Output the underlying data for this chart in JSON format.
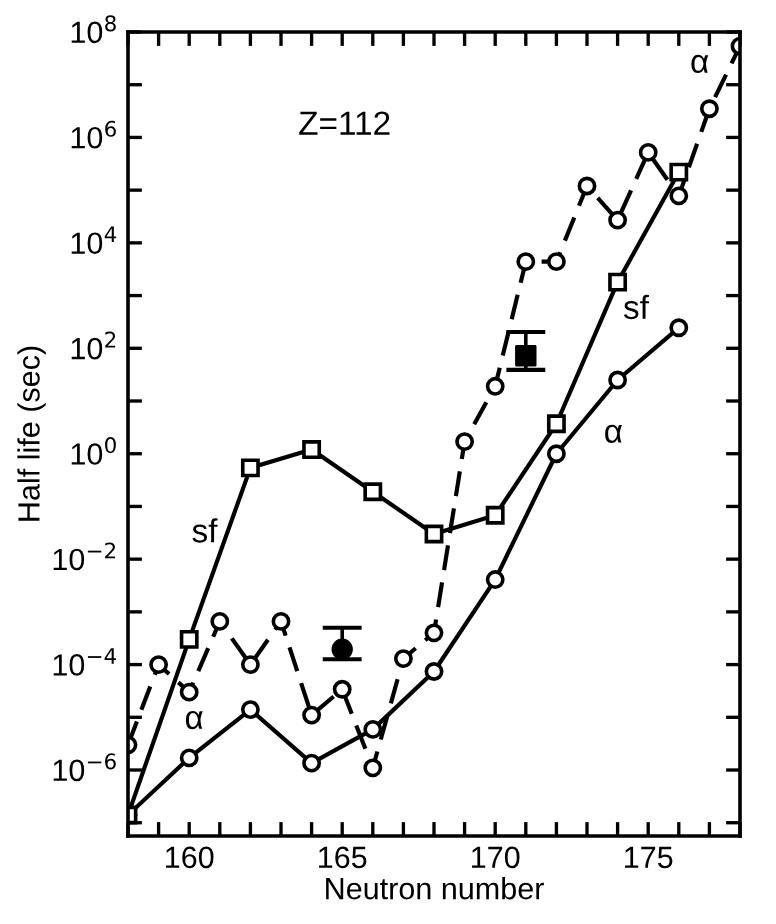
{
  "chart_data": {
    "type": "line",
    "xlabel": "Neutron number",
    "ylabel": "Half life (sec)",
    "log": "y",
    "grid": false,
    "legend": false,
    "xlim": [
      158,
      178
    ],
    "ylim": [
      5.6e-08,
      100000000.0
    ],
    "xticks": [
      {
        "value": 158,
        "label": null
      },
      {
        "value": 159,
        "label": null
      },
      160,
      {
        "value": 161,
        "label": null
      },
      {
        "value": 162,
        "label": null
      },
      {
        "value": 163,
        "label": null
      },
      {
        "value": 164,
        "label": null
      },
      165,
      {
        "value": 166,
        "label": null
      },
      {
        "value": 167,
        "label": null
      },
      {
        "value": 168,
        "label": null
      },
      {
        "value": 169,
        "label": null
      },
      170,
      {
        "value": 171,
        "label": null
      },
      {
        "value": 172,
        "label": null
      },
      {
        "value": 173,
        "label": null
      },
      {
        "value": 174,
        "label": null
      },
      175,
      {
        "value": 176,
        "label": null
      },
      {
        "value": 177,
        "label": null
      },
      {
        "value": 178,
        "label": null
      }
    ],
    "yticks": [
      {
        "value": 1e-07,
        "label": null
      },
      {
        "value": 1e-06,
        "label": "10$^{−6}$"
      },
      {
        "value": 1e-05,
        "label": null
      },
      {
        "value": 0.0001,
        "label": "10$^{−4}$"
      },
      {
        "value": 0.001,
        "label": null
      },
      {
        "value": 0.01,
        "label": "10$^{−2}$"
      },
      {
        "value": 0.1,
        "label": null
      },
      {
        "value": 1,
        "label": "10$^{0}$"
      },
      {
        "value": 10,
        "label": null
      },
      {
        "value": 100,
        "label": "10$^{2}$"
      },
      {
        "value": 1000,
        "label": null
      },
      {
        "value": 10000.0,
        "label": "10$^{4}$"
      },
      {
        "value": 100000.0,
        "label": null
      },
      {
        "value": 1000000.0,
        "label": "10$^{6}$"
      },
      {
        "value": 10000000.0,
        "label": null
      },
      {
        "value": 100000000.0,
        "label": "10$^{8}$"
      }
    ],
    "series": [
      {
        "color": "#000000",
        "marker": "circle",
        "line_style": "dashed",
        "x": [
          158,
          159,
          160,
          161,
          162,
          163,
          164,
          165,
          166,
          167,
          168,
          169,
          170,
          171,
          172,
          173,
          174,
          175,
          176,
          177,
          178
        ],
        "values": [
          3e-06,
          0.0001,
          3e-05,
          0.00066,
          0.0001,
          0.00066,
          1.1e-05,
          3.4e-05,
          1.1e-06,
          0.00013,
          0.0004,
          1.7,
          19,
          4400,
          4400,
          120000.0,
          27000.0,
          520000.0,
          78000.0,
          3500000.0,
          54000000.0
        ]
      },
      {
        "color": "#000000",
        "marker": "circle",
        "line_style": "solid",
        "x": [
          158,
          160,
          162,
          164,
          166,
          168,
          170,
          172,
          174,
          176
        ],
        "values": [
          1.4e-07,
          1.7e-06,
          1.4e-05,
          1.35e-06,
          5.9e-06,
          7.4e-05,
          0.0041,
          1,
          25,
          245
        ]
      },
      {
        "color": "#000000",
        "marker": "square",
        "line_style": "solid",
        "x": [
          158,
          160,
          162,
          164,
          166,
          168,
          170,
          172,
          174,
          176
        ],
        "values": [
          1.4e-07,
          0.0003,
          0.54,
          1.2,
          0.19,
          0.03,
          0.068,
          3.7,
          1800,
          220000.0
        ]
      },
      {
        "type": "scatter",
        "color": "#000000",
        "marker": "square",
        "x": [
          171
        ],
        "values": [
          72
        ],
        "errors": [
          [
            39,
            204
          ]
        ]
      },
      {
        "type": "scatter",
        "color": "#000000",
        "marker": "circle",
        "x": [
          165
        ],
        "values": [
          0.000195
        ],
        "errors": [
          [
            0.000126,
            0.0005
          ]
        ]
      }
    ],
    "annotations": [
      "Z=112",
      "sf",
      "α",
      "α",
      "sf",
      "α"
    ]
  }
}
